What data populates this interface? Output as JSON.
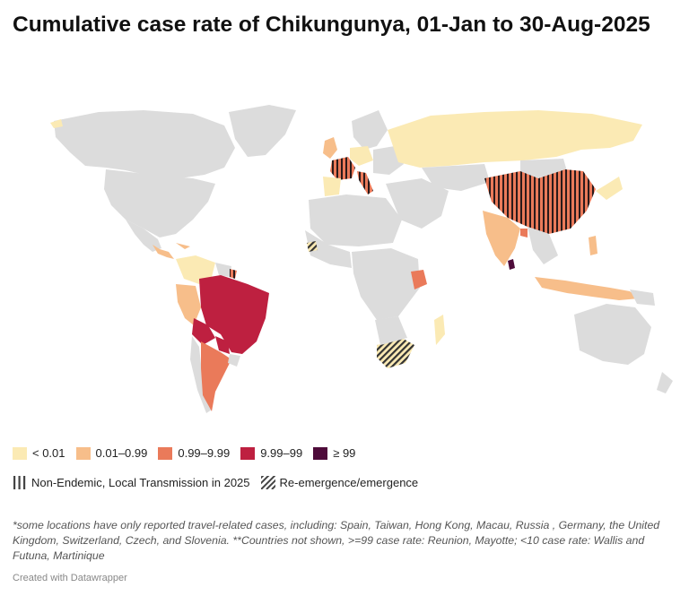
{
  "title": "Cumulative case rate of Chikungunya, 01-Jan to 30-Aug-2025",
  "colors": {
    "no_data": "#dcdcdc",
    "lt_0_01": "#fbeab4",
    "r_0_01_0_99": "#f7be8a",
    "r_0_99_9_99": "#ea7a5a",
    "r_9_99_99": "#be2040",
    "ge_99": "#4e0b3a",
    "hatch_line": "#222222"
  },
  "legend": {
    "bins": [
      {
        "label": "< 0.01",
        "color": "#fbeab4"
      },
      {
        "label": "0.01–0.99",
        "color": "#f7be8a"
      },
      {
        "label": "0.99–9.99",
        "color": "#ea7a5a"
      },
      {
        "label": "9.99–99",
        "color": "#be2040"
      },
      {
        "label": "≥ 99",
        "color": "#4e0b3a"
      }
    ],
    "patterns": [
      {
        "label": "Non-Endemic, Local Transmission in 2025",
        "icon": "vertical-stripes-icon"
      },
      {
        "label": "Re-emergence/emergence",
        "icon": "diagonal-hatch-icon"
      }
    ]
  },
  "note": "*some locations have only reported travel-related cases, including: Spain, Taiwan, Hong Kong, Macau, Russia , Germany, the United Kingdom, Switzerland, Czech, and Slovenia. **Countries not shown, >=99 case rate: Reunion, Mayotte; <10 case rate: Wallis and Futuna, Martinique",
  "credit": "Created with Datawrapper"
}
